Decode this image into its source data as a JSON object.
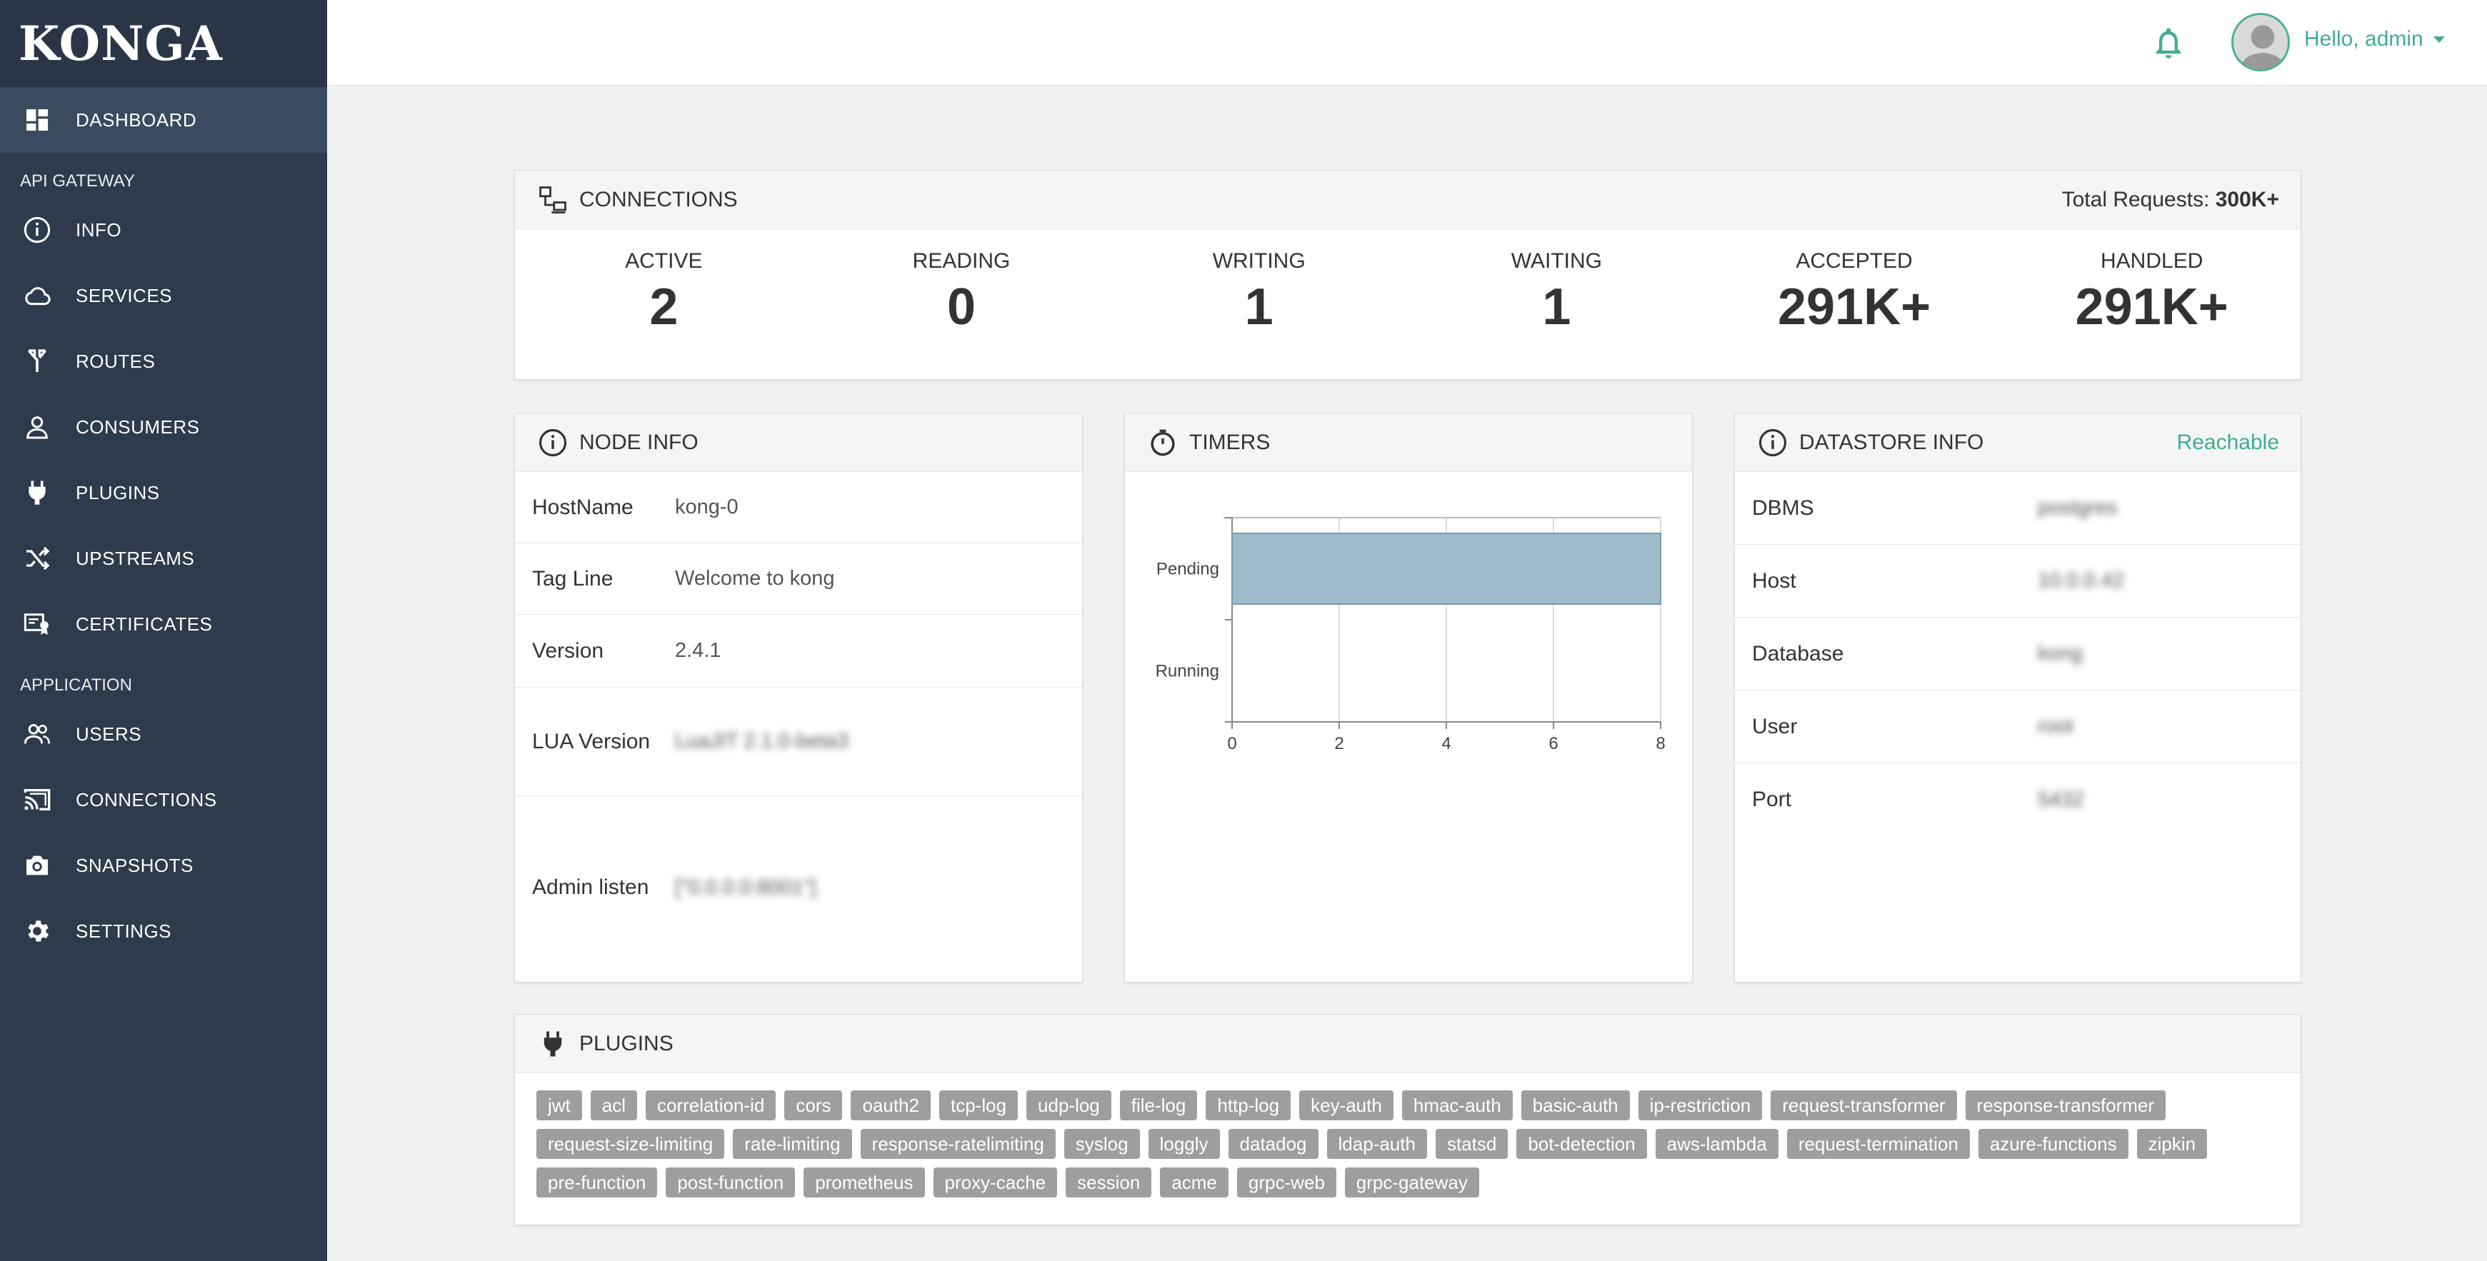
{
  "app": {
    "logo": "KONGA"
  },
  "sidebar": {
    "items": [
      {
        "label": "DASHBOARD",
        "icon": "dashboard-icon",
        "active": true
      },
      {
        "section": "API GATEWAY"
      },
      {
        "label": "INFO",
        "icon": "info-icon"
      },
      {
        "label": "SERVICES",
        "icon": "cloud-icon"
      },
      {
        "label": "ROUTES",
        "icon": "routes-icon"
      },
      {
        "label": "CONSUMERS",
        "icon": "person-icon"
      },
      {
        "label": "PLUGINS",
        "icon": "plug-icon"
      },
      {
        "label": "UPSTREAMS",
        "icon": "shuffle-icon"
      },
      {
        "label": "CERTIFICATES",
        "icon": "certificate-icon"
      },
      {
        "section": "APPLICATION"
      },
      {
        "label": "USERS",
        "icon": "users-icon"
      },
      {
        "label": "CONNECTIONS",
        "icon": "cast-icon"
      },
      {
        "label": "SNAPSHOTS",
        "icon": "camera-icon"
      },
      {
        "label": "SETTINGS",
        "icon": "gear-icon"
      }
    ]
  },
  "header": {
    "greeting": "Hello, admin",
    "accent": "#3fae92"
  },
  "connections": {
    "title": "CONNECTIONS",
    "total_label": "Total Requests:",
    "total_value": "300K+",
    "stats": [
      {
        "name": "ACTIVE",
        "value": "2"
      },
      {
        "name": "READING",
        "value": "0"
      },
      {
        "name": "WRITING",
        "value": "1"
      },
      {
        "name": "WAITING",
        "value": "1"
      },
      {
        "name": "ACCEPTED",
        "value": "291K+"
      },
      {
        "name": "HANDLED",
        "value": "291K+"
      }
    ]
  },
  "node_info": {
    "title": "NODE INFO",
    "rows": [
      {
        "key": "HostName",
        "value": "kong-0"
      },
      {
        "key": "Tag Line",
        "value": "Welcome to kong"
      },
      {
        "key": "Version",
        "value": "2.4.1"
      },
      {
        "key": "LUA Version",
        "value": "LuaJIT 2.1.0-beta3"
      },
      {
        "key": "Admin listen",
        "value": "[\"0.0.0.0:8001\"]"
      }
    ]
  },
  "timers": {
    "title": "TIMERS"
  },
  "chart_data": {
    "type": "bar",
    "orientation": "horizontal",
    "categories": [
      "Pending",
      "Running"
    ],
    "values": [
      8,
      0
    ],
    "xticks": [
      "0",
      "2",
      "4",
      "6",
      "8"
    ],
    "xlim": [
      0,
      8
    ],
    "color": "#9fbacb",
    "grid": true
  },
  "datastore": {
    "title": "DATASTORE INFO",
    "status": "Reachable",
    "rows": [
      {
        "key": "DBMS",
        "value": "postgres"
      },
      {
        "key": "Host",
        "value": "10.0.0.42"
      },
      {
        "key": "Database",
        "value": "kong"
      },
      {
        "key": "User",
        "value": "root"
      },
      {
        "key": "Port",
        "value": "5432"
      }
    ]
  },
  "plugins": {
    "title": "PLUGINS",
    "tags": [
      "jwt",
      "acl",
      "correlation-id",
      "cors",
      "oauth2",
      "tcp-log",
      "udp-log",
      "file-log",
      "http-log",
      "key-auth",
      "hmac-auth",
      "basic-auth",
      "ip-restriction",
      "request-transformer",
      "response-transformer",
      "request-size-limiting",
      "rate-limiting",
      "response-ratelimiting",
      "syslog",
      "loggly",
      "datadog",
      "ldap-auth",
      "statsd",
      "bot-detection",
      "aws-lambda",
      "request-termination",
      "azure-functions",
      "zipkin",
      "pre-function",
      "post-function",
      "prometheus",
      "proxy-cache",
      "session",
      "acme",
      "grpc-web",
      "grpc-gateway"
    ]
  }
}
